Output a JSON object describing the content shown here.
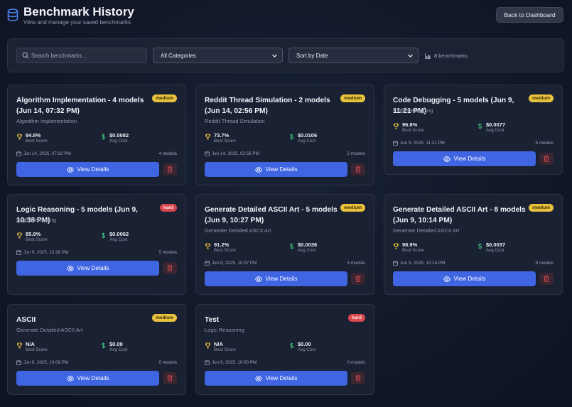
{
  "header": {
    "title": "Benchmark History",
    "subtitle": "View and manage your saved benchmarks",
    "back_label": "Back to Dashboard"
  },
  "filters": {
    "search_placeholder": "Search benchmarks...",
    "category_selected": "All Categories",
    "sort_selected": "Sort by Date",
    "count_text": "8 benchmarks"
  },
  "labels": {
    "best_score": "Best Score",
    "avg_cost": "Avg Cost",
    "view_details": "View Details"
  },
  "colors": {
    "accent": "#3f65e3",
    "medium_badge": "#e9c23d",
    "hard_badge": "#d8484e",
    "trophy": "#e9c23d",
    "dollar": "#3cc47c",
    "delete": "#d8484e"
  },
  "cards": [
    {
      "title": "Algorithm Implementation - 4 models (Jun 14, 07:32 PM)",
      "difficulty": "medium",
      "category": "Algorithm Implementation",
      "best_score": "94.8%",
      "avg_cost": "$0.0082",
      "date": "Jun 14, 2025, 07:32 PM",
      "models": "4 models"
    },
    {
      "title": "Reddit Thread Simulation - 2 models (Jun 14, 02:56 PM)",
      "difficulty": "medium",
      "category": "Reddit Thread Simulation",
      "best_score": "73.7%",
      "avg_cost": "$0.0106",
      "date": "Jun 14, 2025, 02:56 PM",
      "models": "2 models"
    },
    {
      "title": "Code Debugging - 5 models (Jun 9, 11:21 PM)",
      "difficulty": "medium",
      "category": "Code Debugging",
      "best_score": "96.8%",
      "avg_cost": "$0.0077",
      "date": "Jun 9, 2025, 11:21 PM",
      "models": "5 models"
    },
    {
      "title": "Logic Reasoning - 5 models (Jun 9, 10:38 PM)",
      "difficulty": "hard",
      "category": "Logic Reasoning",
      "best_score": "85.9%",
      "avg_cost": "$0.0062",
      "date": "Jun 9, 2025, 10:38 PM",
      "models": "5 models"
    },
    {
      "title": "Generate Detailed ASCII Art - 5 models (Jun 9, 10:27 PM)",
      "difficulty": "medium",
      "category": "Generate Detailed ASCII Art",
      "best_score": "91.2%",
      "avg_cost": "$0.0036",
      "date": "Jun 9, 2025, 10:27 PM",
      "models": "5 models"
    },
    {
      "title": "Generate Detailed ASCII Art - 8 models (Jun 9, 10:14 PM)",
      "difficulty": "medium",
      "category": "Generate Detailed ASCII Art",
      "best_score": "98.9%",
      "avg_cost": "$0.0037",
      "date": "Jun 9, 2025, 10:14 PM",
      "models": "8 models"
    },
    {
      "title": "ASCII",
      "difficulty": "medium",
      "category": "Generate Detailed ASCII Art",
      "best_score": "N/A",
      "avg_cost": "$0.00",
      "date": "Jun 9, 2025, 10:06 PM",
      "models": "0 models"
    },
    {
      "title": "Test",
      "difficulty": "hard",
      "category": "Logic Reasoning",
      "best_score": "N/A",
      "avg_cost": "$0.00",
      "date": "Jun 9, 2025, 10:00 PM",
      "models": "0 models"
    }
  ]
}
